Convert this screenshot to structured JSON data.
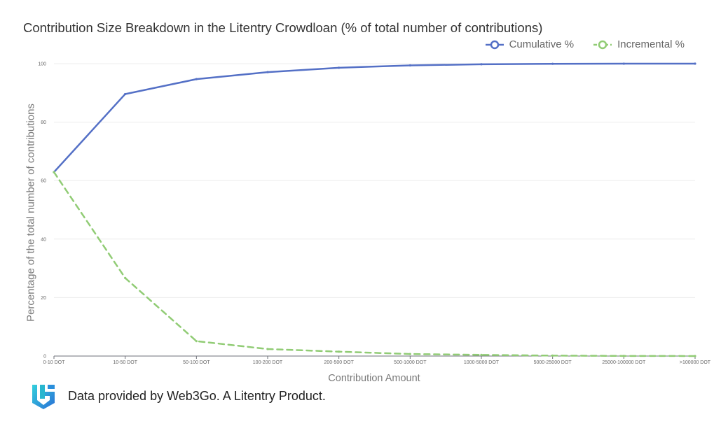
{
  "chart_data": {
    "type": "line",
    "title": "Contribution Size Breakdown in the Litentry Crowdloan (% of total number of contributions)",
    "xlabel": "Contribution Amount",
    "ylabel": "Percentage of the total number of contributions",
    "categories": [
      "0-10 DOT",
      "10-50 DOT",
      "50-100 DOT",
      "100-200 DOT",
      "200-500 DOT",
      "500-1000 DOT",
      "1000-5000 DOT",
      "5000-25000 DOT",
      "25000-100000 DOT",
      ">100000 DOT"
    ],
    "ylim": [
      0,
      100
    ],
    "yticks": [
      0,
      20,
      40,
      60,
      80,
      100
    ],
    "grid": true,
    "legend_position": "top-right",
    "series": [
      {
        "name": "Cumulative %",
        "color": "#5470c6",
        "line_style": "solid",
        "values": [
          62.9,
          89.6,
          94.7,
          97.1,
          98.6,
          99.4,
          99.8,
          99.95,
          99.99,
          100
        ]
      },
      {
        "name": "Incremental %",
        "color": "#91cc75",
        "line_style": "dashed",
        "values": [
          62.9,
          26.7,
          5.1,
          2.4,
          1.5,
          0.7,
          0.4,
          0.15,
          0.04,
          0.01
        ]
      }
    ]
  },
  "footer": {
    "text": "Data provided by Web3Go. A Litentry Product.",
    "logo_icon": "web3go-logo-icon",
    "logo_colors": [
      "#2fc2d8",
      "#2a78d6"
    ]
  }
}
